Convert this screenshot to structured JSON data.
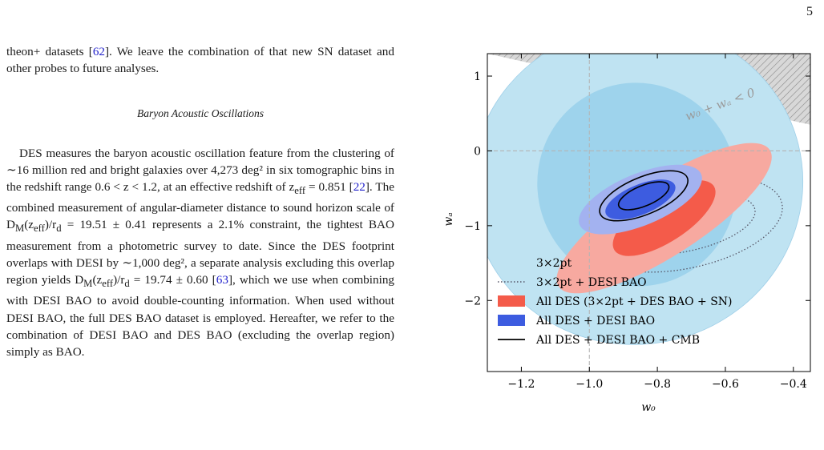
{
  "page": {
    "number": "5"
  },
  "text": {
    "intro_lines": [
      [
        "theon+ datasets [",
        "62",
        "]. We leave the combination of that new SN dataset and other probes to future analyses."
      ]
    ],
    "section_title": "Baryon Acoustic Oscillations",
    "para_parts": [
      "DES measures the baryon acoustic oscillation feature from the clustering of ∼16 million red and bright galaxies over 4,273 deg² in six tomographic bins in the redshift range 0.6 < z < 1.2, at an effective redshift of z",
      "eff",
      " = 0.851 [",
      "22",
      "]. The combined measurement of angular-diameter distance to sound horizon scale of D",
      "M",
      "(z",
      "eff",
      ")/r",
      "d",
      " = 19.51 ± 0.41 represents a 2.1% constraint, the tightest BAO measurement from a photometric survey to date. Since the DES footprint overlaps with DESI by ∼1,000 deg², a separate analysis excluding this overlap region yields D",
      "M",
      "(z",
      "eff",
      ")/r",
      "d",
      " = 19.74 ± 0.60 [",
      "63",
      "], which we use when combining with DESI BAO to avoid double-counting information. When used without DESI BAO, the full DES BAO dataset is employed. Hereafter, we refer to the combination of DESI BAO and DES BAO (excluding the overlap region) simply as BAO."
    ]
  },
  "chart_data": {
    "type": "contour",
    "xlabel": "w₀",
    "ylabel": "wₐ",
    "xlim": [
      -1.3,
      -0.35
    ],
    "ylim": [
      -2.95,
      1.3
    ],
    "xticks": [
      -1.2,
      -1.0,
      -0.8,
      -0.6,
      -0.4
    ],
    "xtick_labels": [
      "−1.2",
      "−1.0",
      "−0.8",
      "−0.6",
      "−0.4"
    ],
    "yticks": [
      1,
      0,
      -1,
      -2
    ],
    "ytick_labels": [
      "1",
      "0",
      "−1",
      "−2"
    ],
    "reference_lines": {
      "w0": -1.0,
      "wa": 0.0
    },
    "excluded_region_label": "w₀ + wₐ < 0",
    "legend_position": "lower-left",
    "series": [
      {
        "name": "3×2pt",
        "style": "filled",
        "color": "#bfe3f2",
        "inner_color": "#9ed3ec",
        "center": [
          -0.86,
          -0.45
        ],
        "width_1": 0.3,
        "height_1": 1.33,
        "width_2": 0.47,
        "height_2": 2.22,
        "tilt": 0.88
      },
      {
        "name": "3×2pt + DESI BAO",
        "style": "dotted",
        "color": "#555566",
        "center": [
          -0.72,
          -0.98
        ],
        "width_1": 0.08,
        "height_1": 0.96,
        "width_2": 0.13,
        "height_2": 1.33,
        "tilt": 1.04
      },
      {
        "name": "All DES (3×2pt + DES BAO + SN)",
        "style": "filled",
        "color": "#f7a9a0",
        "inner_color": "#f45b4a",
        "center": [
          -0.78,
          -0.9
        ],
        "width_1": 0.07,
        "height_1": 0.79,
        "width_2": 0.11,
        "height_2": 1.68,
        "tilt": 0.34
      },
      {
        "name": "All DES + DESI BAO",
        "style": "filled",
        "color": "#a3b2f0",
        "inner_color": "#3d5ce0",
        "center": [
          -0.85,
          -0.65
        ],
        "width_1": 0.044,
        "height_1": 0.5,
        "width_2": 0.076,
        "height_2": 0.88,
        "tilt": 0.53
      },
      {
        "name": "All DES + DESI BAO + CMB",
        "style": "line",
        "color": "#000000",
        "center": [
          -0.84,
          -0.6
        ],
        "width_1": 0.03,
        "height_1": 0.36,
        "width_2": 0.055,
        "height_2": 0.63,
        "tilt": 0.53
      }
    ],
    "colors": {
      "hatch": "#8c8c8c",
      "axis": "#000000",
      "reference": "#b4b4b4"
    }
  }
}
